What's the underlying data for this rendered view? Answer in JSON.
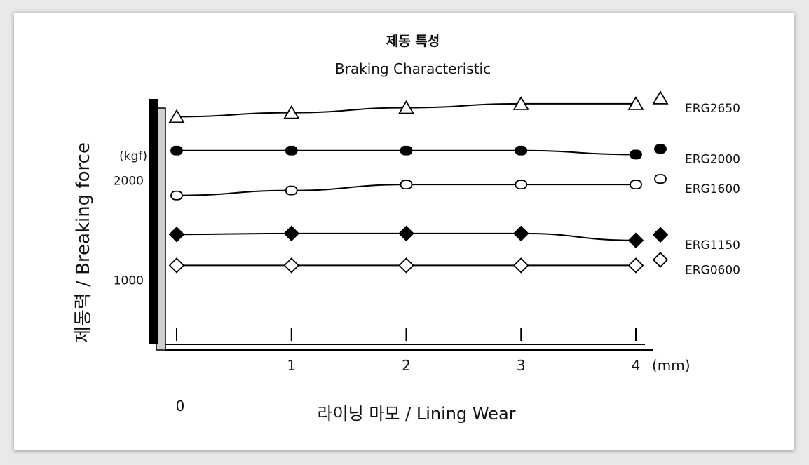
{
  "chart_data": {
    "type": "line",
    "title": "제동 특성",
    "subtitle": "Braking Characteristic",
    "xlabel": "라이닝 마모 / Lining Wear",
    "ylabel": "제동력 / Breaking force",
    "x_unit": "(mm)",
    "y_unit": "(kgf)",
    "x": [
      0,
      1,
      2,
      3,
      4
    ],
    "x_tick_labels": [
      "0",
      "1",
      "2",
      "3",
      "4"
    ],
    "y_ticks": [
      1000,
      2000
    ],
    "y_tick_labels": [
      "1000",
      "2000"
    ],
    "xlim": [
      0,
      4
    ],
    "ylim": [
      450,
      3050
    ],
    "grid": false,
    "legend_position": "right",
    "series": [
      {
        "name": "ERG2650",
        "marker": "triangle-open",
        "values": [
          2640,
          2680,
          2730,
          2770,
          2770
        ]
      },
      {
        "name": "ERG2000",
        "marker": "circle-filled",
        "values": [
          2300,
          2300,
          2300,
          2300,
          2260
        ]
      },
      {
        "name": "ERG1600",
        "marker": "circle-open",
        "values": [
          1850,
          1900,
          1960,
          1960,
          1960
        ]
      },
      {
        "name": "ERG1150",
        "marker": "diamond-filled",
        "values": [
          1460,
          1470,
          1470,
          1470,
          1400
        ]
      },
      {
        "name": "ERG0600",
        "marker": "diamond-open",
        "values": [
          1150,
          1150,
          1150,
          1150,
          1150
        ]
      }
    ]
  },
  "colors": {
    "line": "#000000",
    "axis_bar": "#000000",
    "axis_bar_shadow": "#cfcfcf"
  }
}
